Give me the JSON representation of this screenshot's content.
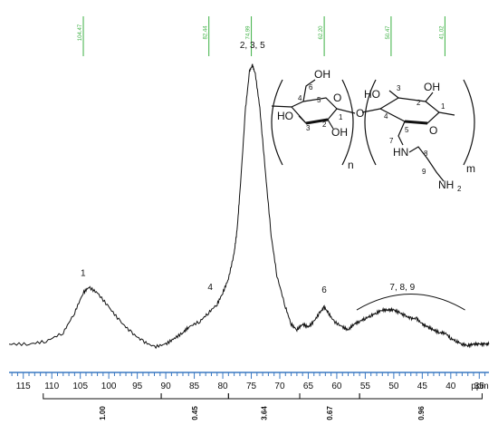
{
  "chart_data": {
    "type": "line",
    "xlabel": "",
    "x_unit": "ppm",
    "x_reversed": true,
    "xlim": [
      117.5,
      33.3
    ],
    "x_ticks": [
      115,
      110,
      105,
      100,
      95,
      90,
      85,
      80,
      75,
      70,
      65,
      60,
      55,
      50,
      45,
      40,
      35
    ],
    "axis_color": "#3a78c2",
    "marker_color": "#3cb043",
    "spectrum": {
      "x": [
        117.5,
        114,
        111,
        108,
        106,
        104.5,
        103.5,
        102,
        100,
        98,
        96,
        94,
        92,
        90,
        88.5,
        87,
        86,
        84,
        82.5,
        81,
        80,
        79,
        78,
        77.5,
        77,
        76,
        75.3,
        74.8,
        74.3,
        73.5,
        72.5,
        71.5,
        70.5,
        69,
        68,
        67,
        66,
        65,
        64,
        63,
        62.2,
        61.5,
        60.5,
        59,
        58,
        57,
        56,
        55,
        54,
        53,
        52,
        51,
        50,
        49,
        48,
        47,
        46,
        45,
        44,
        43,
        42,
        41,
        40,
        39,
        38,
        37,
        36,
        35,
        34,
        33.3
      ],
      "y": [
        0.02,
        0.02,
        0.03,
        0.06,
        0.13,
        0.2,
        0.22,
        0.2,
        0.15,
        0.1,
        0.06,
        0.03,
        0.01,
        0.02,
        0.04,
        0.06,
        0.08,
        0.1,
        0.13,
        0.16,
        0.2,
        0.25,
        0.34,
        0.42,
        0.55,
        0.85,
        0.98,
        1.0,
        0.97,
        0.85,
        0.62,
        0.4,
        0.26,
        0.15,
        0.09,
        0.07,
        0.09,
        0.08,
        0.1,
        0.13,
        0.15,
        0.13,
        0.1,
        0.08,
        0.07,
        0.09,
        0.1,
        0.11,
        0.12,
        0.13,
        0.14,
        0.14,
        0.14,
        0.13,
        0.12,
        0.11,
        0.11,
        0.09,
        0.08,
        0.07,
        0.06,
        0.06,
        0.04,
        0.03,
        0.02,
        0.015,
        0.02,
        0.02,
        0.02,
        0.02
      ]
    },
    "peak_labels": [
      {
        "text": "1",
        "x": 104.5,
        "y": 0.26
      },
      {
        "text": "2, 3, 5",
        "x": 74.8,
        "y": 1.06
      },
      {
        "text": "4",
        "x": 82.2,
        "y": 0.21
      },
      {
        "text": "6",
        "x": 62.2,
        "y": 0.2
      },
      {
        "text": "7, 8, 9",
        "x": 48.5,
        "y": 0.21
      }
    ],
    "peak_markers": [
      {
        "text": "104.47",
        "x": 104.47
      },
      {
        "text": "82.44",
        "x": 82.44
      },
      {
        "text": "74.99",
        "x": 74.99
      },
      {
        "text": "62.20",
        "x": 62.2
      },
      {
        "text": "50.47",
        "x": 50.47
      },
      {
        "text": "41.02",
        "x": 41.02
      }
    ],
    "integrals": [
      {
        "from": 111.5,
        "to": 90.8,
        "value": "1.00"
      },
      {
        "from": 90.8,
        "to": 79.0,
        "value": "0.45"
      },
      {
        "from": 79.0,
        "to": 66.5,
        "value": "3.64"
      },
      {
        "from": 66.5,
        "to": 56.0,
        "value": "0.67"
      },
      {
        "from": 56.0,
        "to": 34.5,
        "value": "0.96"
      }
    ]
  },
  "structure": {
    "left_ring": {
      "oh_top": "OH",
      "oh_left": "HO",
      "oh_bottom": "OH",
      "ring_o": "O",
      "numbers": [
        "4",
        "6",
        "5",
        "3",
        "2",
        "1"
      ]
    },
    "linker_o": "O",
    "right_ring": {
      "oh_left": "HO",
      "oh_right": "OH",
      "ring_o": "O",
      "numbers": [
        "3",
        "2",
        "4",
        "1",
        "5",
        "7",
        "8",
        "9"
      ]
    },
    "nh": "HN",
    "nh2": "NH",
    "nh2_sub": "2",
    "n_label": "n",
    "m_label": "m"
  }
}
